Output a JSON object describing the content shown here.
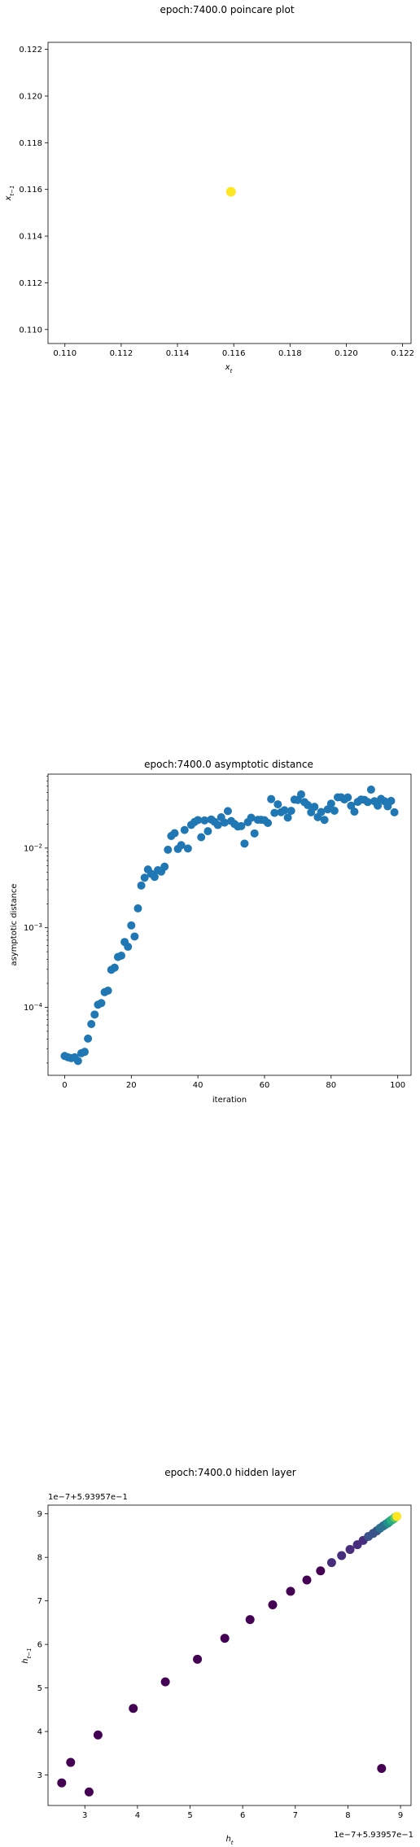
{
  "chart_data": [
    {
      "type": "scatter",
      "title": "epoch:7400.0 poincare plot",
      "xlabel": "x_t",
      "ylabel": "x_{t-1}",
      "xlim": [
        0.1094,
        0.1223
      ],
      "ylim": [
        0.1094,
        0.1223
      ],
      "xticks": [
        "0.110",
        "0.112",
        "0.114",
        "0.116",
        "0.118",
        "0.120",
        "0.122"
      ],
      "yticks": [
        "0.110",
        "0.112",
        "0.114",
        "0.116",
        "0.118",
        "0.120",
        "0.122"
      ],
      "xtick_values": [
        0.11,
        0.112,
        0.114,
        0.116,
        0.118,
        0.12,
        0.122
      ],
      "ytick_values": [
        0.11,
        0.112,
        0.114,
        0.116,
        0.118,
        0.12,
        0.122
      ],
      "point_color": "#fde725",
      "points": [
        [
          0.1159,
          0.1159
        ]
      ]
    },
    {
      "type": "scatter",
      "title": "epoch:7400.0 asymptotic distance",
      "xlabel": "iteration",
      "ylabel": "asymptotic distance",
      "yscale": "log",
      "xlim": [
        -5,
        104
      ],
      "ylim": [
        1.4e-05,
        0.085
      ],
      "xticks": [
        "0",
        "20",
        "40",
        "60",
        "80",
        "100"
      ],
      "xtick_values": [
        0,
        20,
        40,
        60,
        80,
        100
      ],
      "yticks": [
        {
          "base": "10",
          "exp": "-4",
          "value": 0.0001
        },
        {
          "base": "10",
          "exp": "-3",
          "value": 0.001
        },
        {
          "base": "10",
          "exp": "-2",
          "value": 0.01
        }
      ],
      "point_color": "#1f77b4",
      "x": [
        0,
        1,
        2,
        3,
        4,
        5,
        6,
        7,
        8,
        9,
        10,
        11,
        12,
        13,
        14,
        15,
        16,
        17,
        18,
        19,
        20,
        21,
        22,
        23,
        24,
        25,
        26,
        27,
        28,
        29,
        30,
        31,
        32,
        33,
        34,
        35,
        36,
        37,
        38,
        39,
        40,
        41,
        42,
        43,
        44,
        45,
        46,
        47,
        48,
        49,
        50,
        51,
        52,
        53,
        54,
        55,
        56,
        57,
        58,
        59,
        60,
        61,
        62,
        63,
        64,
        65,
        66,
        67,
        68,
        69,
        70,
        71,
        72,
        73,
        74,
        75,
        76,
        77,
        78,
        79,
        80,
        81,
        82,
        83,
        84,
        85,
        86,
        87,
        88,
        89,
        90,
        91,
        92,
        93,
        94,
        95,
        96,
        97,
        98,
        99
      ],
      "y": [
        2.45e-05,
        2.36e-05,
        2.3e-05,
        2.36e-05,
        2.12e-05,
        2.65e-05,
        2.76e-05,
        4.05e-05,
        6.17e-05,
        8.12e-05,
        0.000108,
        0.000113,
        0.000155,
        0.000162,
        0.000296,
        0.000315,
        0.000429,
        0.000446,
        0.000662,
        0.000577,
        0.00107,
        0.000776,
        0.00175,
        0.00339,
        0.00425,
        0.00539,
        0.00475,
        0.00435,
        0.00529,
        0.00507,
        0.00585,
        0.00955,
        0.0142,
        0.0154,
        0.00976,
        0.0109,
        0.0169,
        0.00989,
        0.0196,
        0.0213,
        0.0225,
        0.0137,
        0.0223,
        0.0163,
        0.0229,
        0.0214,
        0.0195,
        0.0244,
        0.0209,
        0.0292,
        0.0219,
        0.0201,
        0.0187,
        0.0189,
        0.0114,
        0.0212,
        0.0241,
        0.0153,
        0.0227,
        0.0227,
        0.0224,
        0.0207,
        0.0413,
        0.0277,
        0.0355,
        0.0283,
        0.0299,
        0.0242,
        0.0294,
        0.0407,
        0.0403,
        0.0473,
        0.0378,
        0.0347,
        0.0282,
        0.033,
        0.0245,
        0.0284,
        0.0226,
        0.0307,
        0.0362,
        0.0295,
        0.0435,
        0.0435,
        0.0409,
        0.0433,
        0.0341,
        0.0287,
        0.0381,
        0.0407,
        0.0404,
        0.0379,
        0.0543,
        0.0388,
        0.0342,
        0.0416,
        0.0389,
        0.0335,
        0.0392,
        0.0282
      ]
    },
    {
      "type": "scatter",
      "title": "epoch:7400.0 hidden layer",
      "xlabel": "h_t",
      "ylabel": "h_{t-1}",
      "x_offset_text": "1e−7+5.93957e−1",
      "y_offset_text": "1e−7+5.93957e−1",
      "xlim": [
        2.3,
        9.2
      ],
      "ylim": [
        2.3,
        9.2
      ],
      "xticks": [
        "3",
        "4",
        "5",
        "6",
        "7",
        "8",
        "9"
      ],
      "yticks": [
        "3",
        "4",
        "5",
        "6",
        "7",
        "8",
        "9"
      ],
      "xtick_values": [
        3,
        4,
        5,
        6,
        7,
        8,
        9
      ],
      "ytick_values": [
        3,
        4,
        5,
        6,
        7,
        8,
        9
      ],
      "colormap": [
        "#440154",
        "#472d7b",
        "#3b528b",
        "#2c728e",
        "#21918c",
        "#28ae80",
        "#5ec962",
        "#addc30",
        "#fde725"
      ],
      "points": [
        [
          2.56,
          2.82
        ],
        [
          2.73,
          3.29
        ],
        [
          3.08,
          2.61
        ],
        [
          3.25,
          3.92
        ],
        [
          3.92,
          4.53
        ],
        [
          4.53,
          5.14
        ],
        [
          5.14,
          5.66
        ],
        [
          5.66,
          6.14
        ],
        [
          6.14,
          6.57
        ],
        [
          6.57,
          6.91
        ],
        [
          6.91,
          7.22
        ],
        [
          7.22,
          7.48
        ],
        [
          7.48,
          7.69
        ],
        [
          7.69,
          7.88
        ],
        [
          7.88,
          8.04
        ],
        [
          8.04,
          8.18
        ],
        [
          8.18,
          8.29
        ],
        [
          8.29,
          8.39
        ],
        [
          8.39,
          8.48
        ],
        [
          8.48,
          8.55
        ],
        [
          8.55,
          8.61
        ],
        [
          8.61,
          8.67
        ],
        [
          8.67,
          8.72
        ],
        [
          8.72,
          8.76
        ],
        [
          8.76,
          8.79
        ],
        [
          8.79,
          8.82
        ],
        [
          8.82,
          8.85
        ],
        [
          8.85,
          8.87
        ],
        [
          8.87,
          8.89
        ],
        [
          8.89,
          8.91
        ],
        [
          8.91,
          8.93
        ],
        [
          8.93,
          8.94
        ],
        [
          8.64,
          3.15
        ]
      ]
    }
  ]
}
